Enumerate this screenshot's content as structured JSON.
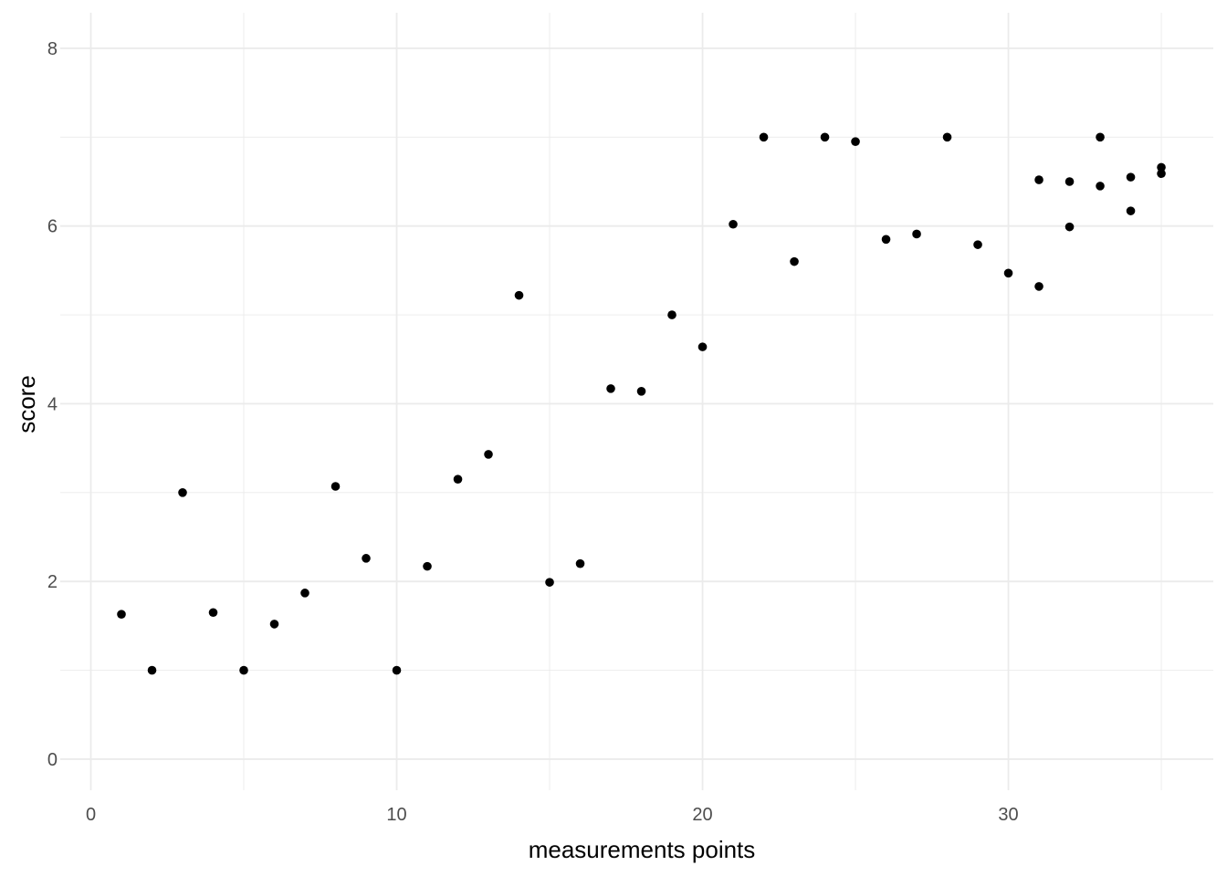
{
  "chart_data": {
    "type": "scatter",
    "title": "",
    "xlabel": "measurements points",
    "ylabel": "score",
    "xlim": [
      -1,
      36.7
    ],
    "ylim": [
      -0.35,
      8.4
    ],
    "x_ticks": [
      0,
      10,
      20,
      30
    ],
    "y_ticks": [
      0,
      2,
      4,
      6,
      8
    ],
    "x_minor": [
      5,
      15,
      25,
      35
    ],
    "y_minor": [
      1,
      3,
      5,
      7
    ],
    "grid": true,
    "legend": "none",
    "point_color": "#000000",
    "grid_color": "#ebebeb",
    "points": [
      {
        "x": 1,
        "y": 1.63
      },
      {
        "x": 2,
        "y": 1.0
      },
      {
        "x": 3,
        "y": 3.0
      },
      {
        "x": 4,
        "y": 1.65
      },
      {
        "x": 5,
        "y": 1.0
      },
      {
        "x": 6,
        "y": 1.52
      },
      {
        "x": 7,
        "y": 1.87
      },
      {
        "x": 8,
        "y": 3.07
      },
      {
        "x": 9,
        "y": 2.26
      },
      {
        "x": 10,
        "y": 1.0
      },
      {
        "x": 11,
        "y": 2.17
      },
      {
        "x": 12,
        "y": 3.15
      },
      {
        "x": 13,
        "y": 3.43
      },
      {
        "x": 14,
        "y": 5.22
      },
      {
        "x": 15,
        "y": 1.99
      },
      {
        "x": 16,
        "y": 2.2
      },
      {
        "x": 17,
        "y": 4.17
      },
      {
        "x": 18,
        "y": 4.14
      },
      {
        "x": 19,
        "y": 5.0
      },
      {
        "x": 20,
        "y": 4.64
      },
      {
        "x": 21,
        "y": 6.02
      },
      {
        "x": 22,
        "y": 7.0
      },
      {
        "x": 23,
        "y": 5.6
      },
      {
        "x": 24,
        "y": 7.0
      },
      {
        "x": 25,
        "y": 6.95
      },
      {
        "x": 26,
        "y": 5.85
      },
      {
        "x": 27,
        "y": 5.91
      },
      {
        "x": 28,
        "y": 7.0
      },
      {
        "x": 29,
        "y": 5.79
      },
      {
        "x": 30,
        "y": 5.47
      },
      {
        "x": 31,
        "y": 6.52
      },
      {
        "x": 31,
        "y": 5.32
      },
      {
        "x": 32,
        "y": 6.5
      },
      {
        "x": 32,
        "y": 5.99
      },
      {
        "x": 33,
        "y": 7.0
      },
      {
        "x": 33,
        "y": 6.45
      },
      {
        "x": 34,
        "y": 6.55
      },
      {
        "x": 34,
        "y": 6.17
      },
      {
        "x": 35,
        "y": 6.66
      },
      {
        "x": 35,
        "y": 6.59
      }
    ]
  }
}
